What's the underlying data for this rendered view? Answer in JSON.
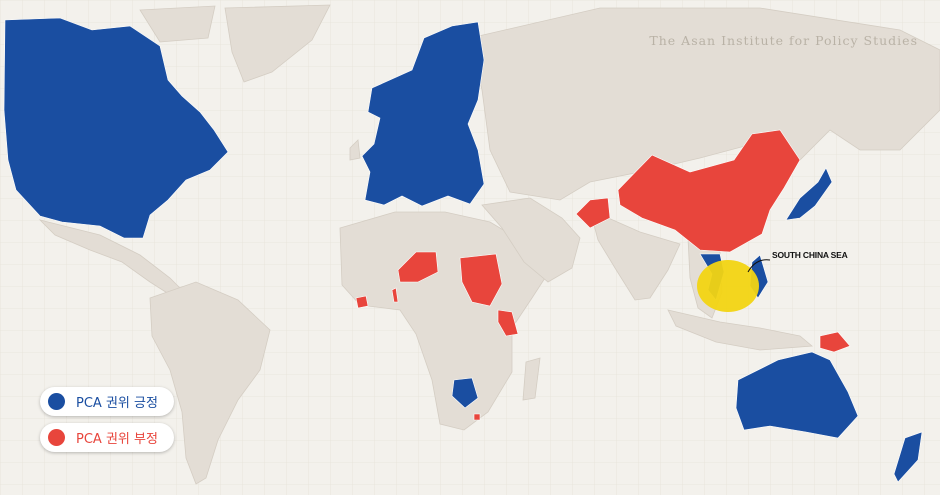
{
  "credit": "The Asan Institute for Policy Studies",
  "annotation": "SOUTH CHINA SEA",
  "legend": [
    {
      "label": "PCA 권위 긍정",
      "color": "#1a4ea1"
    },
    {
      "label": "PCA 권위 부정",
      "color": "#e8453c"
    }
  ],
  "colors": {
    "positive": "#1a4ea1",
    "negative": "#e8453c",
    "sea": "#f2d413",
    "land": "#e3ddd5",
    "water": "#f3f1ec"
  }
}
